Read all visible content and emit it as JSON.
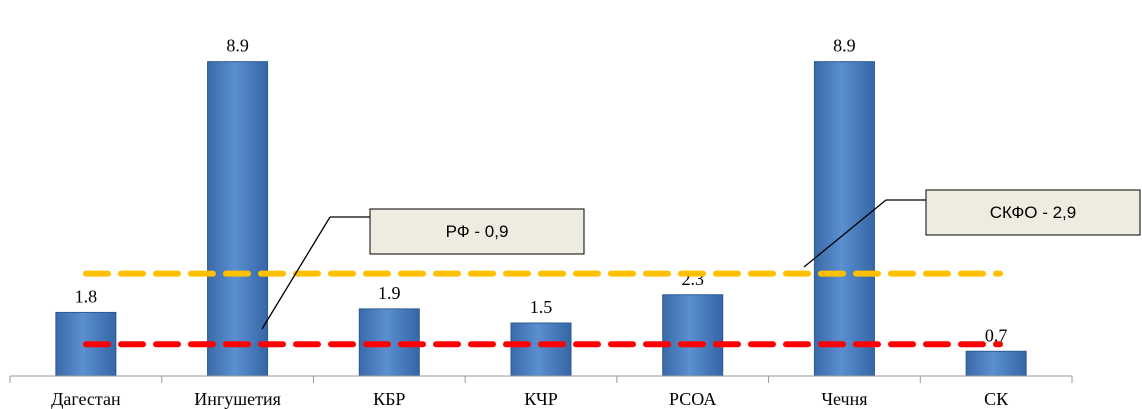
{
  "chart_data": {
    "type": "bar",
    "categories": [
      "Дагестан",
      "Ингушетия",
      "КБР",
      "КЧР",
      "РСОА",
      "Чечня",
      "СК"
    ],
    "values": [
      1.8,
      8.9,
      1.9,
      1.5,
      2.3,
      8.9,
      0.7
    ],
    "data_labels": [
      "1.8",
      "8.9",
      "1.9",
      "1.5",
      "2.3",
      "8.9",
      "0.7"
    ],
    "title": "",
    "xlabel": "",
    "ylabel": "",
    "ylim": [
      0,
      9.4
    ],
    "grid": false,
    "bar_color": "#4f81bd",
    "reference_lines": [
      {
        "label": "РФ - 0,9",
        "value": 0.9,
        "color": "#ff0000",
        "style": "dashed"
      },
      {
        "label": "СКФО - 2,9",
        "value": 2.9,
        "color": "#ffc000",
        "style": "dashed"
      }
    ]
  }
}
